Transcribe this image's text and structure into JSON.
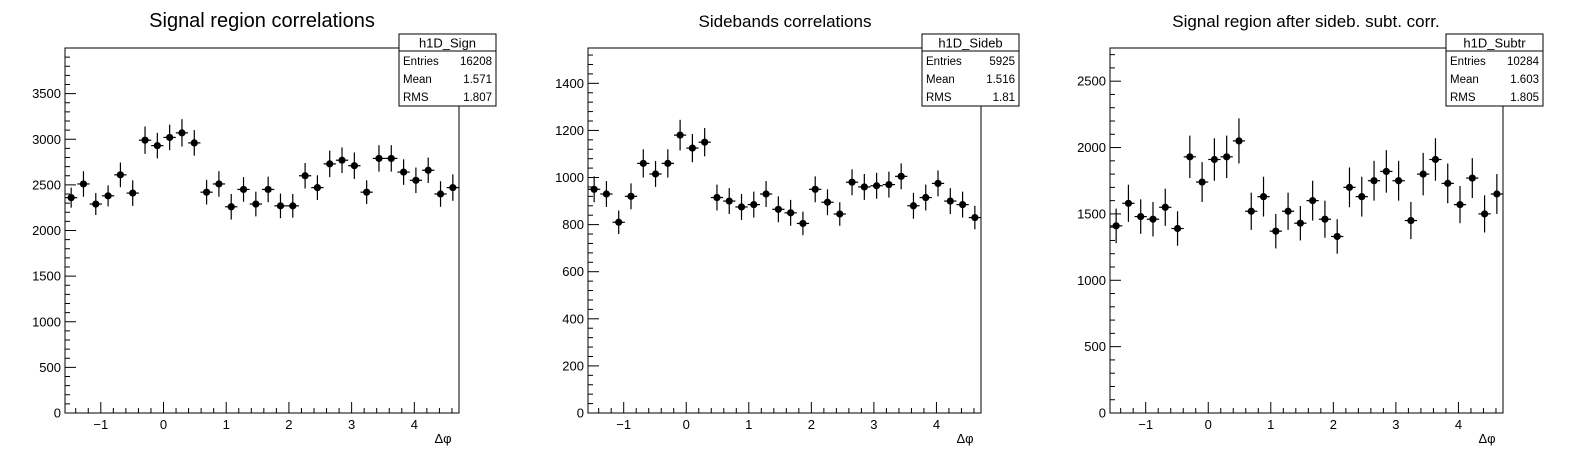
{
  "chart_data": [
    {
      "type": "scatter",
      "title": "Signal region correlations",
      "xlabel": "Δφ",
      "ylabel": "",
      "xlim": [
        -1.5708,
        4.7124
      ],
      "ylim": [
        0,
        4000
      ],
      "xticks": [
        -1,
        0,
        1,
        2,
        3,
        4
      ],
      "yticks": [
        0,
        500,
        1000,
        1500,
        2000,
        2500,
        3000,
        3500
      ],
      "stats": {
        "name": "h1D_Sign",
        "rows": [
          [
            "Entries",
            "16208"
          ],
          [
            "Mean",
            "1.571"
          ],
          [
            "RMS",
            "1.807"
          ]
        ]
      },
      "values": [
        2360,
        2510,
        2290,
        2380,
        2610,
        2410,
        2990,
        2930,
        3020,
        3070,
        2960,
        2420,
        2510,
        2260,
        2450,
        2290,
        2450,
        2270,
        2270,
        2600,
        2470,
        2730,
        2770,
        2710,
        2420,
        2790,
        2790,
        2640,
        2550,
        2660,
        2400,
        2470
      ],
      "errors": [
        110,
        140,
        120,
        115,
        135,
        140,
        150,
        140,
        140,
        150,
        140,
        135,
        140,
        140,
        135,
        135,
        140,
        135,
        130,
        140,
        135,
        145,
        140,
        145,
        130,
        145,
        145,
        140,
        140,
        140,
        140,
        145
      ]
    },
    {
      "type": "scatter",
      "title": "Sidebands correlations",
      "xlabel": "Δφ",
      "ylabel": "",
      "xlim": [
        -1.5708,
        4.7124
      ],
      "ylim": [
        0,
        1550
      ],
      "xticks": [
        -1,
        0,
        1,
        2,
        3,
        4
      ],
      "yticks": [
        0,
        200,
        400,
        600,
        800,
        1000,
        1200,
        1400
      ],
      "stats": {
        "name": "h1D_Sideb",
        "rows": [
          [
            "Entries",
            "5925"
          ],
          [
            "Mean",
            "1.516"
          ],
          [
            "RMS",
            "1.81"
          ]
        ]
      },
      "values": [
        950,
        930,
        810,
        920,
        1060,
        1015,
        1060,
        1180,
        1125,
        1150,
        915,
        900,
        875,
        885,
        930,
        865,
        850,
        805,
        950,
        895,
        845,
        980,
        960,
        965,
        970,
        1005,
        880,
        915,
        975,
        900,
        885,
        830
      ],
      "errors": [
        55,
        55,
        50,
        55,
        60,
        55,
        60,
        65,
        60,
        60,
        55,
        55,
        55,
        55,
        55,
        55,
        55,
        50,
        55,
        55,
        50,
        55,
        55,
        55,
        55,
        55,
        55,
        55,
        55,
        55,
        55,
        50
      ]
    },
    {
      "type": "scatter",
      "title": "Signal region after sideb. subt. corr.",
      "xlabel": "Δφ",
      "ylabel": "",
      "xlim": [
        -1.5708,
        4.7124
      ],
      "ylim": [
        0,
        2750
      ],
      "xticks": [
        -1,
        0,
        1,
        2,
        3,
        4
      ],
      "yticks": [
        0,
        500,
        1000,
        1500,
        2000,
        2500
      ],
      "stats": {
        "name": "h1D_Subtr",
        "rows": [
          [
            "Entries",
            "10284"
          ],
          [
            "Mean",
            "1.603"
          ],
          [
            "RMS",
            "1.805"
          ]
        ]
      },
      "values": [
        1410,
        1580,
        1480,
        1460,
        1550,
        1390,
        1930,
        1740,
        1910,
        1930,
        2050,
        1520,
        1630,
        1370,
        1520,
        1430,
        1600,
        1460,
        1330,
        1700,
        1630,
        1750,
        1820,
        1750,
        1450,
        1800,
        1910,
        1730,
        1570,
        1770,
        1500,
        1650
      ],
      "errors": [
        130,
        140,
        130,
        130,
        140,
        130,
        160,
        150,
        160,
        160,
        170,
        140,
        150,
        130,
        140,
        130,
        150,
        140,
        130,
        150,
        150,
        150,
        160,
        150,
        140,
        160,
        160,
        150,
        140,
        150,
        140,
        150
      ]
    }
  ]
}
